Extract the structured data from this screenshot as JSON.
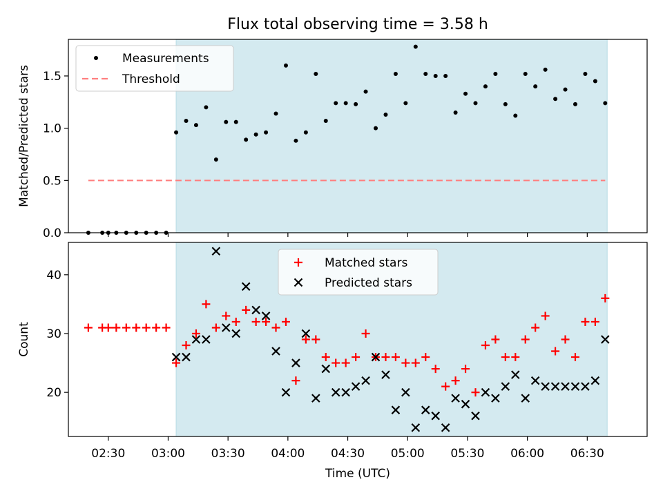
{
  "title": "Flux total observing time = 3.58 h",
  "colors": {
    "observing_span": "#d4eaf0",
    "ratio_points": "#000000",
    "threshold": "#ff7f7f",
    "matched": "#ff0000",
    "predicted": "#000000"
  },
  "chart_data": [
    {
      "type": "scatter",
      "title": "Flux total observing time = 3.58 h",
      "xlabel": "",
      "ylabel": "Matched/Predicted stars",
      "xlim": [
        "02:10",
        "07:00"
      ],
      "ylim": [
        0,
        1.85
      ],
      "yticks": [
        "0.0",
        "0.5",
        "1.0",
        "1.5"
      ],
      "legend": {
        "position": "upper left",
        "entries": [
          "Measurements",
          "Threshold"
        ]
      },
      "observing_span": {
        "start": "03:04",
        "end": "06:40"
      },
      "threshold": {
        "name": "Threshold",
        "value": 0.5,
        "start": "02:20",
        "end": "06:39"
      },
      "series": [
        {
          "name": "Measurements",
          "x": [
            "02:20",
            "02:27",
            "02:30",
            "02:34",
            "02:39",
            "02:44",
            "02:49",
            "02:54",
            "02:59",
            "03:04",
            "03:09",
            "03:14",
            "03:19",
            "03:24",
            "03:29",
            "03:34",
            "03:39",
            "03:44",
            "03:49",
            "03:54",
            "03:59",
            "04:04",
            "04:09",
            "04:14",
            "04:19",
            "04:24",
            "04:29",
            "04:34",
            "04:39",
            "04:44",
            "04:49",
            "04:54",
            "04:59",
            "05:04",
            "05:09",
            "05:14",
            "05:19",
            "05:24",
            "05:29",
            "05:34",
            "05:39",
            "05:44",
            "05:49",
            "05:54",
            "05:59",
            "06:04",
            "06:09",
            "06:14",
            "06:19",
            "06:24",
            "06:29",
            "06:34",
            "06:39"
          ],
          "y": [
            0,
            0,
            0,
            0,
            0,
            0,
            0,
            0,
            0,
            0.96,
            1.07,
            1.03,
            1.2,
            0.7,
            1.06,
            1.06,
            0.89,
            0.94,
            0.96,
            1.14,
            1.6,
            0.88,
            0.96,
            1.52,
            1.07,
            1.24,
            1.24,
            1.23,
            1.35,
            1.0,
            1.13,
            1.52,
            1.24,
            1.78,
            1.52,
            1.5,
            1.5,
            1.15,
            1.33,
            1.24,
            1.4,
            1.52,
            1.23,
            1.12,
            1.52,
            1.4,
            1.56,
            1.28,
            1.37,
            1.23,
            1.52,
            1.45,
            1.24
          ]
        }
      ]
    },
    {
      "type": "scatter",
      "xlabel": "Time (UTC)",
      "ylabel": "Count",
      "xlim": [
        "02:10",
        "07:00"
      ],
      "ylim": [
        12.5,
        45.5
      ],
      "xticks": [
        "02:30",
        "03:00",
        "03:30",
        "04:00",
        "04:30",
        "05:00",
        "05:30",
        "06:00",
        "06:30"
      ],
      "yticks": [
        "20",
        "30",
        "40"
      ],
      "legend": {
        "position": "upper center",
        "entries": [
          "Matched stars",
          "Predicted stars"
        ]
      },
      "observing_span": {
        "start": "03:04",
        "end": "06:40"
      },
      "series": [
        {
          "name": "Matched stars",
          "marker": "+",
          "x": [
            "02:20",
            "02:27",
            "02:30",
            "02:34",
            "02:39",
            "02:44",
            "02:49",
            "02:54",
            "02:59",
            "03:04",
            "03:09",
            "03:14",
            "03:19",
            "03:24",
            "03:29",
            "03:34",
            "03:39",
            "03:44",
            "03:49",
            "03:54",
            "03:59",
            "04:04",
            "04:09",
            "04:14",
            "04:19",
            "04:24",
            "04:29",
            "04:34",
            "04:39",
            "04:44",
            "04:49",
            "04:54",
            "04:59",
            "05:04",
            "05:09",
            "05:14",
            "05:19",
            "05:24",
            "05:29",
            "05:34",
            "05:39",
            "05:44",
            "05:49",
            "05:54",
            "05:59",
            "06:04",
            "06:09",
            "06:14",
            "06:19",
            "06:24",
            "06:29",
            "06:34",
            "06:39"
          ],
          "y": [
            31,
            31,
            31,
            31,
            31,
            31,
            31,
            31,
            31,
            25,
            28,
            30,
            35,
            31,
            33,
            32,
            34,
            32,
            32,
            31,
            32,
            22,
            29,
            29,
            26,
            25,
            25,
            26,
            30,
            26,
            26,
            26,
            25,
            25,
            26,
            24,
            21,
            22,
            24,
            20,
            28,
            29,
            26,
            26,
            29,
            31,
            33,
            27,
            29,
            26,
            32,
            32,
            36
          ]
        },
        {
          "name": "Predicted stars",
          "marker": "x",
          "x": [
            "03:04",
            "03:09",
            "03:14",
            "03:19",
            "03:24",
            "03:29",
            "03:34",
            "03:39",
            "03:44",
            "03:49",
            "03:54",
            "03:59",
            "04:04",
            "04:09",
            "04:14",
            "04:19",
            "04:24",
            "04:29",
            "04:34",
            "04:39",
            "04:44",
            "04:49",
            "04:54",
            "04:59",
            "05:04",
            "05:09",
            "05:14",
            "05:19",
            "05:24",
            "05:29",
            "05:34",
            "05:39",
            "05:44",
            "05:49",
            "05:54",
            "05:59",
            "06:04",
            "06:09",
            "06:14",
            "06:19",
            "06:24",
            "06:29",
            "06:34",
            "06:39"
          ],
          "y": [
            26,
            26,
            29,
            29,
            44,
            31,
            30,
            38,
            34,
            33,
            27,
            20,
            25,
            30,
            19,
            24,
            20,
            20,
            21,
            22,
            26,
            23,
            17,
            20,
            14,
            17,
            16,
            14,
            19,
            18,
            16,
            20,
            19,
            21,
            23,
            19,
            22,
            21,
            21,
            21,
            21,
            21,
            22,
            29
          ]
        }
      ]
    }
  ]
}
